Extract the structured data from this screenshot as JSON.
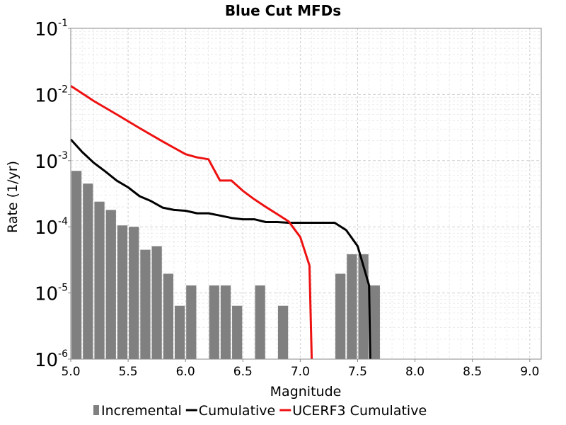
{
  "chart_data": {
    "type": "bar+line",
    "title": "Blue Cut MFDs",
    "xlabel": "Magnitude",
    "ylabel": "Rate (1/yr)",
    "xlim": [
      5.0,
      9.1
    ],
    "ylim": [
      1e-06,
      0.1
    ],
    "yscale": "log",
    "grid": true,
    "legend_position": "bottom",
    "x_ticks": [
      "5.0",
      "5.5",
      "6.0",
      "6.5",
      "7.0",
      "7.5",
      "8.0",
      "8.5",
      "9.0"
    ],
    "y_ticks": [
      {
        "base": "10",
        "exp": "-6"
      },
      {
        "base": "10",
        "exp": "-5"
      },
      {
        "base": "10",
        "exp": "-4"
      },
      {
        "base": "10",
        "exp": "-3"
      },
      {
        "base": "10",
        "exp": "-2"
      },
      {
        "base": "10",
        "exp": "-1"
      }
    ],
    "series": [
      {
        "name": "Incremental",
        "kind": "bar",
        "color": "#808080",
        "x": [
          5.05,
          5.15,
          5.25,
          5.35,
          5.45,
          5.55,
          5.65,
          5.75,
          5.85,
          5.95,
          6.05,
          6.25,
          6.35,
          6.45,
          6.65,
          6.85,
          7.35,
          7.45,
          7.55,
          7.65
        ],
        "y": [
          0.0007,
          0.00045,
          0.00024,
          0.00018,
          0.000105,
          0.0001,
          4.5e-05,
          5.1e-05,
          1.95e-05,
          6.4e-06,
          1.3e-05,
          1.3e-05,
          1.3e-05,
          6.4e-06,
          1.3e-05,
          6.4e-06,
          1.95e-05,
          3.85e-05,
          3.85e-05,
          1.3e-05
        ]
      },
      {
        "name": "Cumulative",
        "kind": "line",
        "color": "#000000",
        "x": [
          5.0,
          5.1,
          5.2,
          5.3,
          5.4,
          5.5,
          5.6,
          5.7,
          5.8,
          5.9,
          6.0,
          6.1,
          6.2,
          6.3,
          6.4,
          6.5,
          6.6,
          6.7,
          6.8,
          6.9,
          7.0,
          7.1,
          7.2,
          7.3,
          7.4,
          7.5,
          7.6,
          7.61
        ],
        "y": [
          0.0021,
          0.00135,
          0.00093,
          0.00069,
          0.0005,
          0.000395,
          0.00029,
          0.000245,
          0.000195,
          0.00018,
          0.000175,
          0.00016,
          0.00016,
          0.000148,
          0.000136,
          0.00013,
          0.00013,
          0.000118,
          0.000118,
          0.000115,
          0.000115,
          0.000115,
          0.000115,
          0.000115,
          8.9e-05,
          5.1e-05,
          1.3e-05,
          1e-06
        ]
      },
      {
        "name": "UCERF3 Cumulative",
        "kind": "line",
        "color": "#ee1111",
        "x": [
          5.0,
          5.2,
          5.4,
          5.6,
          5.8,
          6.0,
          6.1,
          6.2,
          6.3,
          6.4,
          6.5,
          6.6,
          6.7,
          6.8,
          6.9,
          7.0,
          7.08,
          7.1
        ],
        "y": [
          0.0135,
          0.008,
          0.005,
          0.0031,
          0.00195,
          0.00125,
          0.00112,
          0.00105,
          0.0005,
          0.0005,
          0.00035,
          0.00026,
          0.0002,
          0.000155,
          0.00012,
          7e-05,
          2.6e-05,
          1e-06
        ]
      }
    ]
  }
}
